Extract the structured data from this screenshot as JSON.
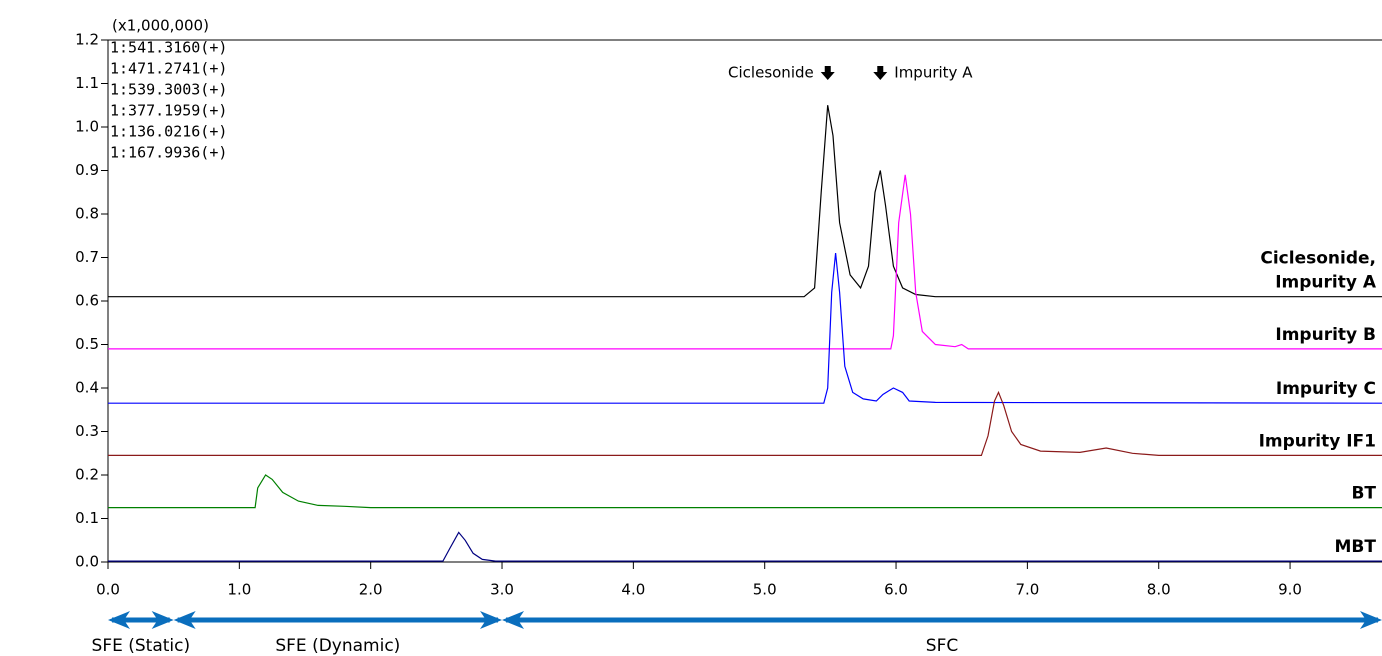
{
  "chart_data": {
    "type": "line",
    "y_multiplier": "(x1,000,000)",
    "xlim": [
      0,
      9.7
    ],
    "ylim": [
      0,
      1.2
    ],
    "xticks": [
      {
        "value": 0,
        "label": "0.0"
      },
      {
        "value": 1,
        "label": "1.0"
      },
      {
        "value": 2,
        "label": "2.0"
      },
      {
        "value": 3,
        "label": "3.0"
      },
      {
        "value": 4,
        "label": "4.0"
      },
      {
        "value": 5,
        "label": "5.0"
      },
      {
        "value": 6,
        "label": "6.0"
      },
      {
        "value": 7,
        "label": "7.0"
      },
      {
        "value": 8,
        "label": "8.0"
      },
      {
        "value": 9,
        "label": "9.0"
      }
    ],
    "yticks": [
      {
        "value": 0,
        "label": "0.0"
      },
      0.1,
      0.2,
      0.3,
      0.4,
      0.5,
      0.6,
      0.7,
      0.8,
      0.9,
      {
        "value": 1,
        "label": "1.0"
      },
      1.1,
      1.2
    ],
    "series": [
      {
        "name": "1:541.3160(+)",
        "color": "#000000",
        "label": [
          "Ciclesonide,",
          "Impurity A"
        ],
        "x": [
          0,
          5.3,
          5.38,
          5.43,
          5.48,
          5.52,
          5.57,
          5.65,
          5.73,
          5.79,
          5.84,
          5.88,
          5.92,
          5.98,
          6.05,
          6.15,
          6.3,
          9.7
        ],
        "values": [
          0.61,
          0.61,
          0.63,
          0.85,
          1.05,
          0.98,
          0.78,
          0.66,
          0.63,
          0.68,
          0.85,
          0.9,
          0.82,
          0.68,
          0.63,
          0.615,
          0.61,
          0.61
        ]
      },
      {
        "name": "1:471.2741(+)",
        "color": "#ff00ff",
        "label": [
          "Impurity B"
        ],
        "x": [
          0,
          5.96,
          5.98,
          6.02,
          6.07,
          6.11,
          6.15,
          6.2,
          6.3,
          6.45,
          6.5,
          6.55,
          9.7
        ],
        "values": [
          0.49,
          0.49,
          0.52,
          0.78,
          0.89,
          0.8,
          0.62,
          0.53,
          0.5,
          0.495,
          0.5,
          0.49,
          0.49
        ]
      },
      {
        "name": "1:539.3003(+)",
        "color": "#0000ff",
        "label": [
          "Impurity C"
        ],
        "x": [
          0,
          5.45,
          5.48,
          5.51,
          5.54,
          5.57,
          5.61,
          5.67,
          5.75,
          5.85,
          5.9,
          5.98,
          6.05,
          6.1,
          6.3,
          9.7
        ],
        "values": [
          0.365,
          0.365,
          0.4,
          0.62,
          0.71,
          0.62,
          0.45,
          0.39,
          0.375,
          0.37,
          0.385,
          0.4,
          0.39,
          0.37,
          0.367,
          0.365
        ]
      },
      {
        "name": "1:377.1959(+)",
        "color": "#8b1a1a",
        "label": [
          "Impurity IF1"
        ],
        "x": [
          0,
          6.65,
          6.7,
          6.75,
          6.78,
          6.82,
          6.88,
          6.95,
          7.1,
          7.4,
          7.6,
          7.8,
          8.0,
          9.7
        ],
        "values": [
          0.245,
          0.245,
          0.29,
          0.37,
          0.39,
          0.36,
          0.3,
          0.27,
          0.255,
          0.252,
          0.262,
          0.25,
          0.245,
          0.245
        ]
      },
      {
        "name": "1:136.0216(+)",
        "color": "#008000",
        "label": [
          "BT"
        ],
        "x": [
          0,
          1.12,
          1.14,
          1.2,
          1.25,
          1.33,
          1.45,
          1.6,
          1.8,
          2.0,
          9.7
        ],
        "values": [
          0.125,
          0.125,
          0.17,
          0.2,
          0.19,
          0.16,
          0.14,
          0.13,
          0.128,
          0.125,
          0.125
        ]
      },
      {
        "name": "1:167.9936(+)",
        "color": "#000080",
        "label": [
          "MBT"
        ],
        "x": [
          0,
          2.55,
          2.6,
          2.67,
          2.72,
          2.78,
          2.85,
          2.95,
          9.7
        ],
        "values": [
          0.002,
          0.002,
          0.03,
          0.068,
          0.05,
          0.02,
          0.006,
          0.002,
          0.002
        ]
      }
    ],
    "annotations": [
      {
        "text": "Ciclesonide",
        "x": 5.48,
        "side": "left"
      },
      {
        "text": "Impurity A",
        "x": 5.88,
        "side": "right"
      }
    ],
    "regions": [
      {
        "label": "SFE (Static)",
        "start": 0,
        "end": 0.5
      },
      {
        "label": "SFE (Dynamic)",
        "start": 0.5,
        "end": 3.0
      },
      {
        "label": "SFC",
        "start": 3.0,
        "end": 9.7
      }
    ],
    "region_color": "#0a6ebd"
  }
}
